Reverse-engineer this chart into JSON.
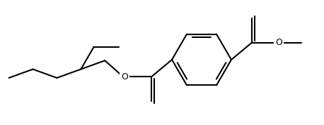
{
  "background_color": "#ffffff",
  "line_color": "#000000",
  "line_width": 1.5,
  "figsize": [
    4.58,
    1.78
  ],
  "dpi": 100
}
